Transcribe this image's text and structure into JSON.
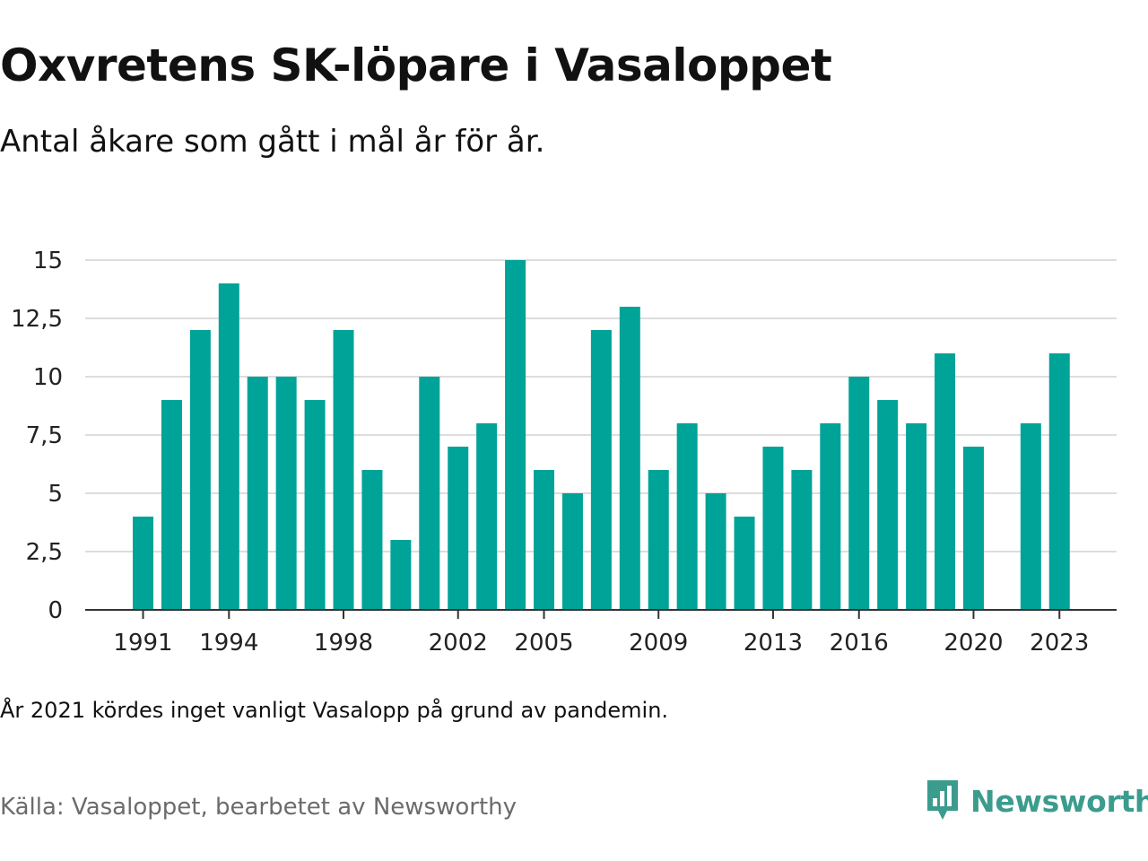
{
  "title": "Oxvretens SK-löpare i Vasaloppet",
  "subtitle": "Antal åkare som gått i mål år för år.",
  "note": "År 2021 kördes inget vanligt Vasalopp på grund av pandemin.",
  "source": "Källa: Vasaloppet, bearbetet av Newsworthy",
  "logo": {
    "text": "Newsworthy",
    "icon": "newsworthy-logo-icon",
    "color": "#3b9c8e"
  },
  "colors": {
    "bar": "#00a398",
    "grid": "#dddddd",
    "axis": "#333333"
  },
  "chart_data": {
    "type": "bar",
    "title": "Oxvretens SK-löpare i Vasaloppet",
    "subtitle": "Antal åkare som gått i mål år för år.",
    "xlabel": "",
    "ylabel": "",
    "x": [
      1991,
      1992,
      1993,
      1994,
      1995,
      1996,
      1997,
      1998,
      1999,
      2000,
      2001,
      2002,
      2003,
      2004,
      2005,
      2006,
      2007,
      2008,
      2009,
      2010,
      2011,
      2012,
      2013,
      2014,
      2015,
      2016,
      2017,
      2018,
      2019,
      2020,
      2021,
      2022,
      2023
    ],
    "values": [
      4,
      9,
      12,
      14,
      10,
      10,
      9,
      12,
      6,
      3,
      10,
      7,
      8,
      15,
      6,
      5,
      12,
      13,
      6,
      8,
      5,
      4,
      7,
      6,
      8,
      10,
      9,
      8,
      11,
      7,
      null,
      8,
      11
    ],
    "ylim": [
      0,
      15
    ],
    "yticks": [
      {
        "value": 0,
        "label": "0"
      },
      {
        "value": 2.5,
        "label": "2,5"
      },
      {
        "value": 5,
        "label": "5"
      },
      {
        "value": 7.5,
        "label": "7,5"
      },
      {
        "value": 10,
        "label": "10"
      },
      {
        "value": 12.5,
        "label": "12,5"
      },
      {
        "value": 15,
        "label": "15"
      }
    ],
    "xticks": [
      1991,
      1994,
      1998,
      2002,
      2005,
      2009,
      2013,
      2016,
      2020,
      2023
    ],
    "grid": true,
    "legend": "none"
  }
}
